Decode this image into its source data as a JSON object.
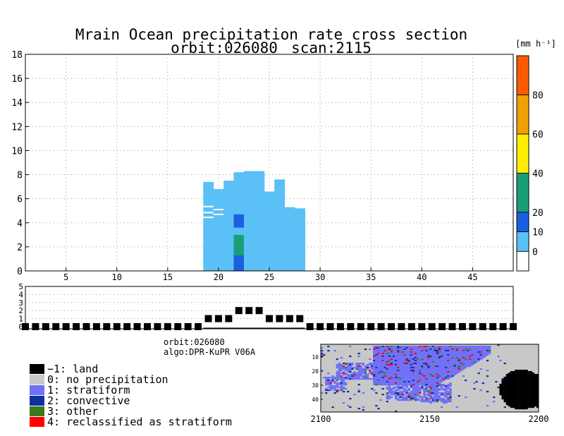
{
  "chart_data": [
    {
      "type": "heatmap",
      "title": "Mrain Ocean precipitation rate cross section",
      "subtitle_orbit": "orbit:026080",
      "subtitle_scan": "scan:2115",
      "xlim": [
        1,
        49
      ],
      "ylim": [
        0,
        18
      ],
      "x_ticks": [
        5,
        10,
        15,
        20,
        25,
        30,
        35,
        40,
        45
      ],
      "y_ticks": [
        0,
        2,
        4,
        6,
        8,
        10,
        12,
        14,
        16,
        18
      ],
      "grid": true,
      "colorbar": {
        "unit_label": "[mm h⁻¹]",
        "range": [
          -10,
          100
        ],
        "bands": [
          {
            "from": -10,
            "to": 0,
            "color": "#ffffff"
          },
          {
            "from": 0,
            "to": 10,
            "color": "#5bc0f5"
          },
          {
            "from": 10,
            "to": 20,
            "color": "#1a5fe0"
          },
          {
            "from": 20,
            "to": 40,
            "color": "#1a9e78"
          },
          {
            "from": 40,
            "to": 60,
            "color": "#ffee00"
          },
          {
            "from": 60,
            "to": 80,
            "color": "#f0a000"
          },
          {
            "from": 80,
            "to": 100,
            "color": "#ff5a00"
          }
        ],
        "tick_labels": [
          "0",
          "10",
          "20",
          "40",
          "60",
          "80"
        ],
        "tick_values": [
          0,
          10,
          20,
          40,
          60,
          80
        ]
      },
      "columns": [
        {
          "x": 19,
          "top": 7.4
        },
        {
          "x": 20,
          "top": 6.8
        },
        {
          "x": 21,
          "top": 7.5
        },
        {
          "x": 22,
          "top": 8.2
        },
        {
          "x": 23,
          "top": 8.3
        },
        {
          "x": 24,
          "top": 8.3
        },
        {
          "x": 25,
          "top": 6.6
        },
        {
          "x": 26,
          "top": 7.6
        },
        {
          "x": 27,
          "top": 5.3
        },
        {
          "x": 28,
          "top": 5.2
        }
      ],
      "gaps": [
        {
          "x0": 18.5,
          "x1": 19.5,
          "y": 5.35
        },
        {
          "x0": 18.5,
          "x1": 19.5,
          "y": 4.85
        },
        {
          "x0": 18.5,
          "x1": 19.5,
          "y": 4.45
        },
        {
          "x0": 19.5,
          "x1": 20.5,
          "y": 5.1
        },
        {
          "x0": 19.5,
          "x1": 20.5,
          "y": 4.7
        }
      ],
      "core": [
        {
          "x": 22,
          "y0": 0,
          "y1": 1.3,
          "value": 15
        },
        {
          "x": 22,
          "y0": 1.3,
          "y1": 2.0,
          "value": 25
        },
        {
          "x": 22,
          "y0": 2.0,
          "y1": 3.0,
          "value": 30
        },
        {
          "x": 22,
          "y0": 3.0,
          "y1": 3.6,
          "value": 8
        },
        {
          "x": 22,
          "y0": 3.6,
          "y1": 4.7,
          "value": 15
        }
      ]
    },
    {
      "type": "scatter",
      "description_label": "surface flag strip",
      "xlim": [
        1,
        49
      ],
      "ylim": [
        0,
        5
      ],
      "y_ticks": [
        0,
        1,
        2,
        3,
        4,
        5
      ],
      "x": [
        1,
        2,
        3,
        4,
        5,
        6,
        7,
        8,
        9,
        10,
        11,
        12,
        13,
        14,
        15,
        16,
        17,
        18,
        19,
        20,
        21,
        22,
        23,
        24,
        25,
        26,
        27,
        28,
        29,
        30,
        31,
        32,
        33,
        34,
        35,
        36,
        37,
        38,
        39,
        40,
        41,
        42,
        43,
        44,
        45,
        46,
        47,
        48,
        49
      ],
      "y": [
        0,
        0,
        0,
        0,
        0,
        0,
        0,
        0,
        0,
        0,
        0,
        0,
        0,
        0,
        0,
        0,
        0,
        0,
        1,
        1,
        1,
        2,
        2,
        2,
        1,
        1,
        1,
        1,
        0,
        0,
        0,
        0,
        0,
        0,
        0,
        0,
        0,
        0,
        0,
        0,
        0,
        0,
        0,
        0,
        0,
        0,
        0,
        0,
        0
      ]
    },
    {
      "type": "heatmap",
      "description_label": "precipitation type swath map",
      "xlim": [
        2100,
        2200
      ],
      "ylim": [
        1,
        49
      ],
      "x_ticks": [
        2100,
        2150,
        2200
      ],
      "y_ticks": [
        10,
        20,
        30,
        40
      ],
      "info_orbit": "orbit:026080",
      "info_algo": "algo:DPR-KuPR V06A",
      "legend": [
        {
          "label": "−1: land",
          "color": "#000000"
        },
        {
          "label": "0: no precipitation",
          "color": "#c8c8c8"
        },
        {
          "label": "1: stratiform",
          "color": "#7070f8"
        },
        {
          "label": "2: convective",
          "color": "#1030a0"
        },
        {
          "label": "3: other",
          "color": "#3c7a1a"
        },
        {
          "label": "4: reclassified as stratiform",
          "color": "#ff0000"
        }
      ]
    }
  ]
}
